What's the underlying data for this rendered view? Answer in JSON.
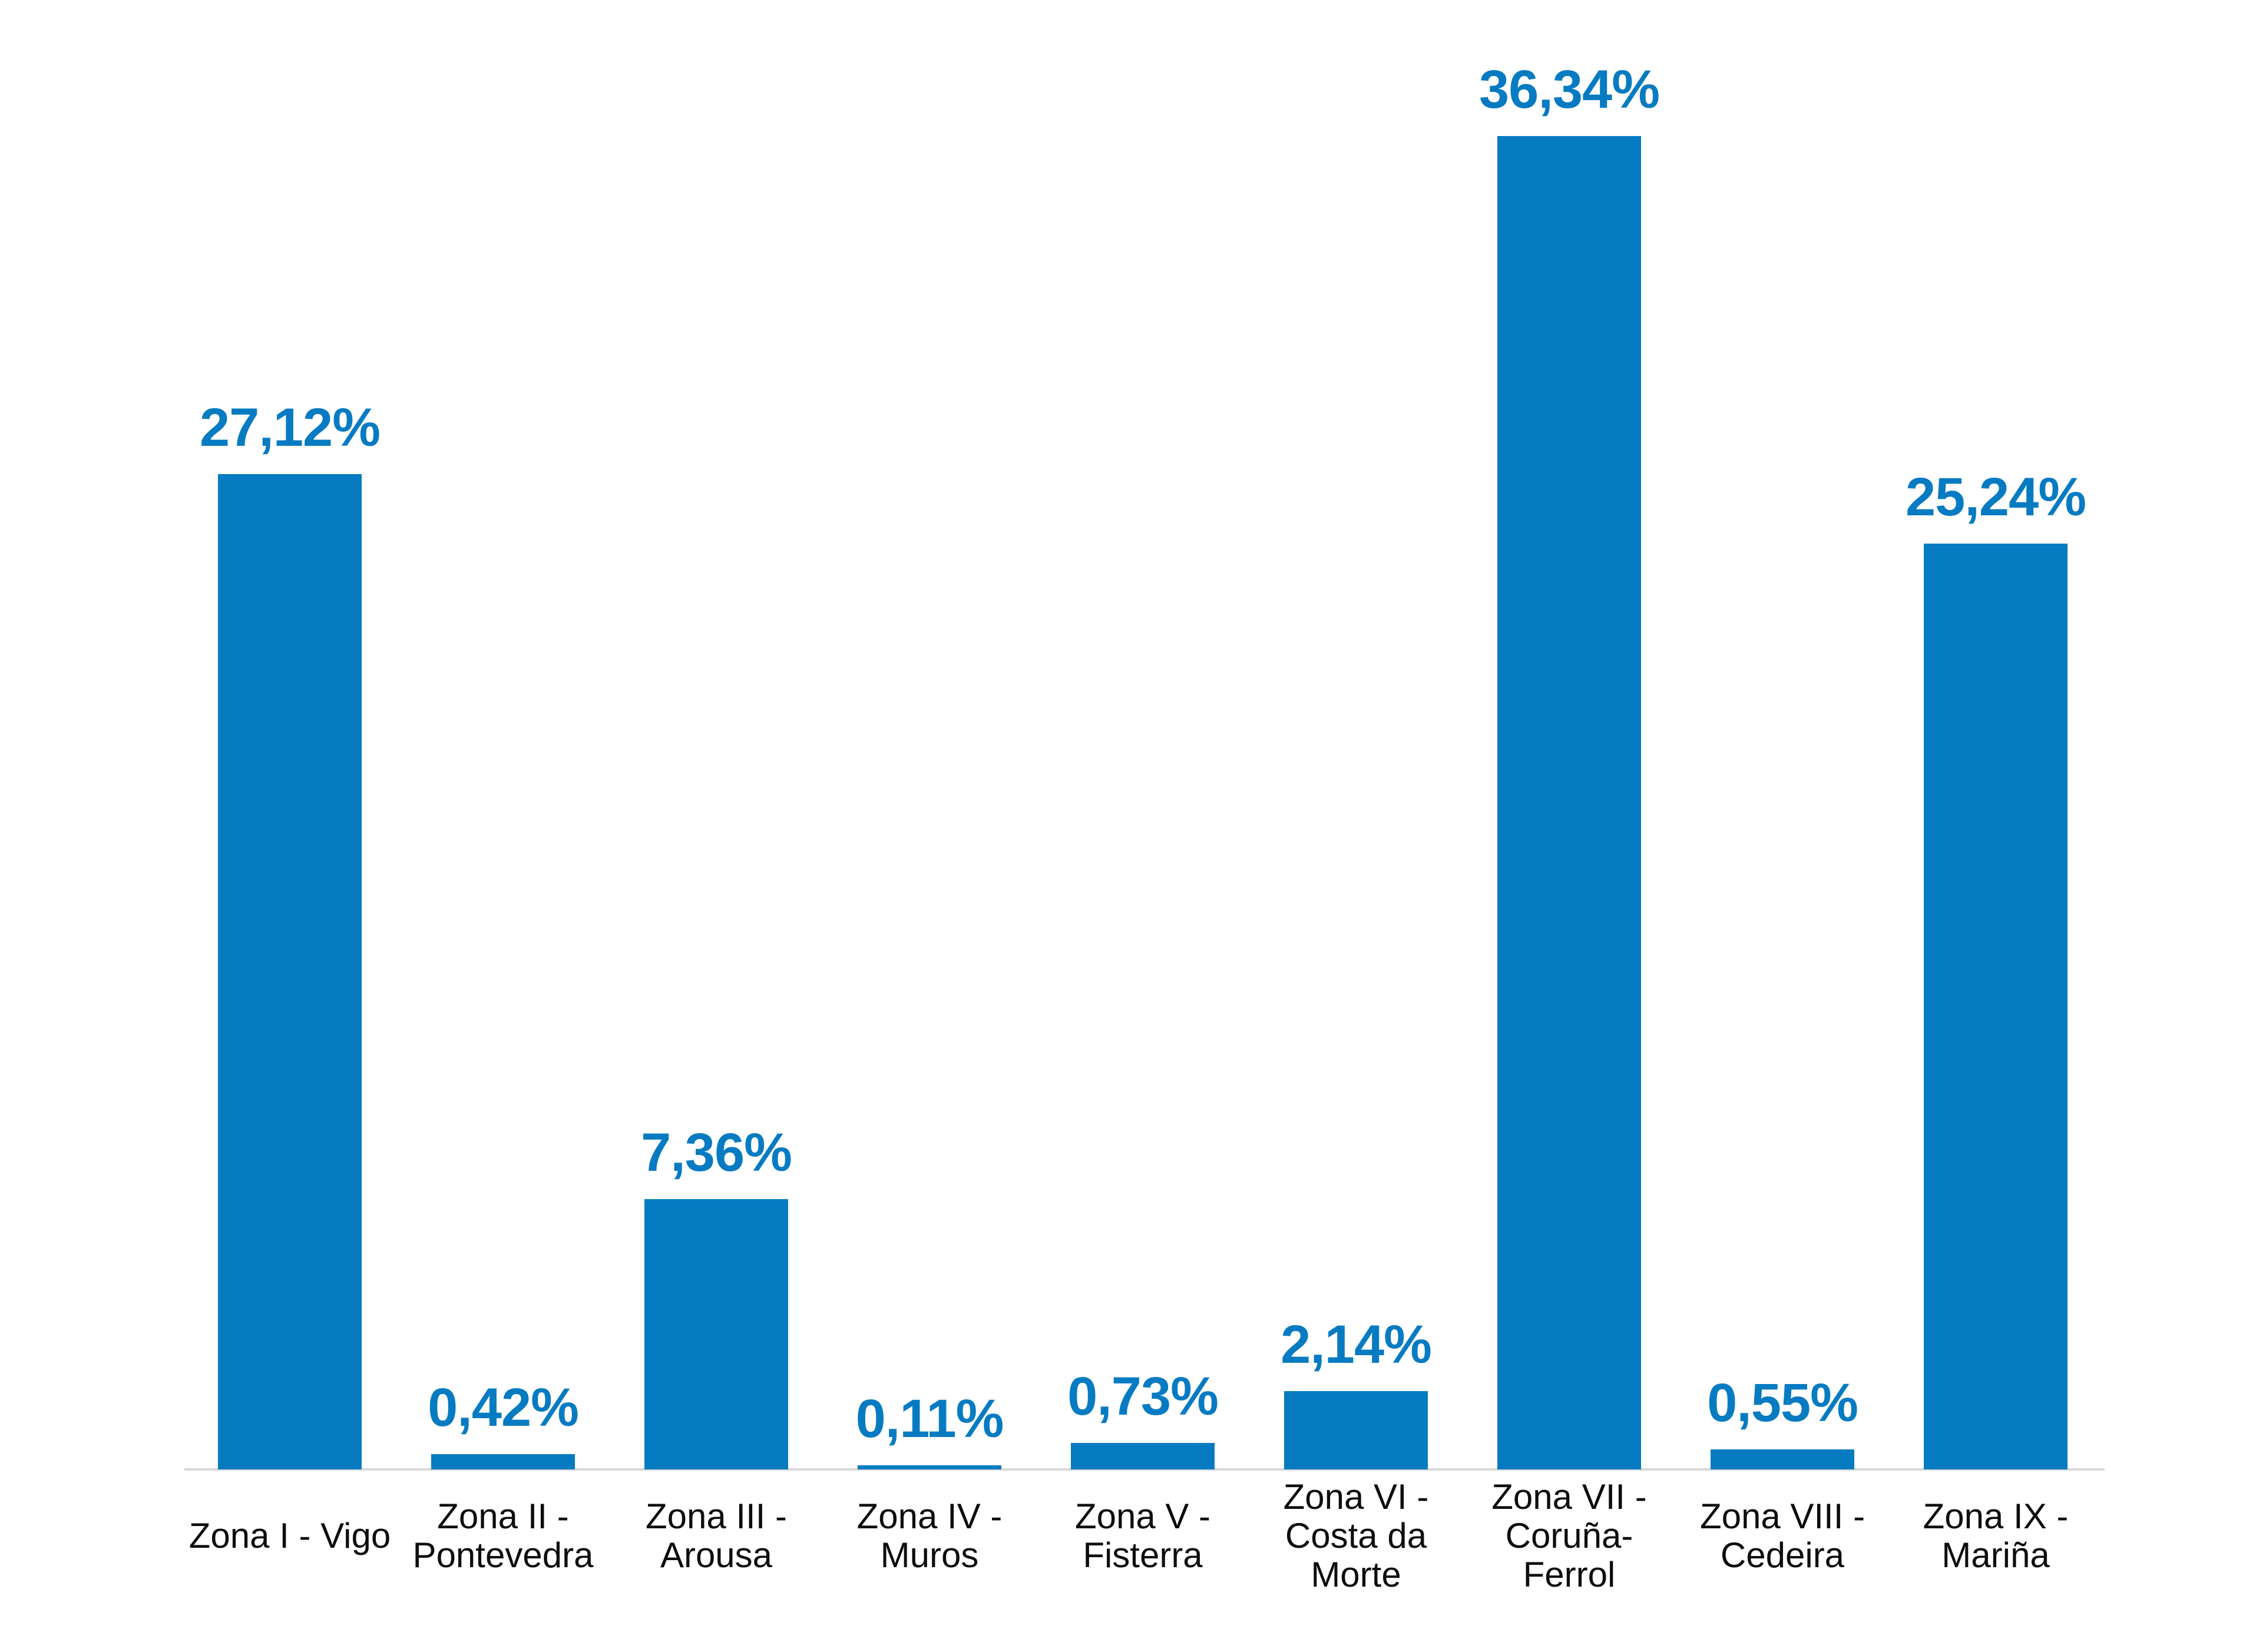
{
  "chart_data": {
    "type": "bar",
    "categories": [
      "Zona I - Vigo",
      "Zona II - Pontevedra",
      "Zona III - Arousa",
      "Zona IV - Muros",
      "Zona V - Fisterra",
      "Zona VI - Costa da Morte",
      "Zona VII - Coruña-Ferrol",
      "Zona VIII - Cedeira",
      "Zona IX - Mariña"
    ],
    "category_label_lines": [
      "Zona I - Vigo",
      "Zona II -\nPontevedra",
      "Zona III -\nArousa",
      "Zona IV -\nMuros",
      "Zona V -\nFisterra",
      "Zona VI -\nCosta da\nMorte",
      "Zona VII -\nCoruña-\nFerrol",
      "Zona VIII -\nCedeira",
      "Zona IX -\nMariña"
    ],
    "values": [
      27.12,
      0.42,
      7.36,
      0.11,
      0.73,
      2.14,
      36.34,
      0.55,
      25.24
    ],
    "value_labels": [
      "27,12%",
      "0,42%",
      "7,36%",
      "0,11%",
      "0,73%",
      "2,14%",
      "36,34%",
      "0,55%",
      "25,24%"
    ],
    "ylim": [
      0,
      40
    ],
    "grid": false,
    "legend": null,
    "bar_color": "#077bc2",
    "value_label_color": "#077bc2",
    "category_label_color": "#0d0d0d",
    "axis_line_color": "#d8d8d8"
  }
}
